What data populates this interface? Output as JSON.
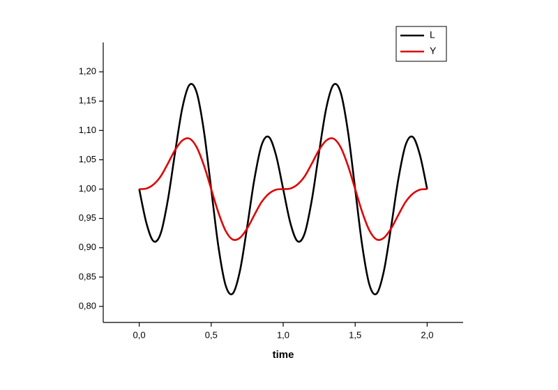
{
  "chart_data": {
    "type": "line",
    "x_label": "time",
    "x": [
      0,
      0.05,
      0.1,
      0.15,
      0.2,
      0.25,
      0.3,
      0.35,
      0.4,
      0.45,
      0.5,
      0.55,
      0.6,
      0.65,
      0.7,
      0.75,
      0.8,
      0.85,
      0.9,
      0.95,
      1,
      1.05,
      1.1,
      1.15,
      1.2,
      1.25,
      1.3,
      1.35,
      1.4,
      1.45,
      1.5,
      1.55,
      1.6,
      1.65,
      1.7,
      1.75,
      1.8,
      1.85,
      1.9,
      1.95,
      2
    ],
    "series": [
      {
        "name": "L",
        "color": "#000000",
        "values": [
          1.0,
          0.942,
          0.911,
          0.925,
          0.983,
          1.064,
          1.139,
          1.178,
          1.164,
          1.098,
          1.0,
          0.902,
          0.836,
          0.822,
          0.861,
          0.936,
          1.017,
          1.075,
          1.089,
          1.058,
          1.0,
          0.942,
          0.911,
          0.925,
          0.983,
          1.064,
          1.139,
          1.178,
          1.164,
          1.098,
          1.0,
          0.902,
          0.836,
          0.822,
          0.861,
          0.936,
          1.017,
          1.075,
          1.089,
          1.058,
          1.0
        ]
      },
      {
        "name": "Y",
        "color": "#e00000",
        "values": [
          1.0,
          1.001,
          1.008,
          1.022,
          1.044,
          1.067,
          1.083,
          1.086,
          1.071,
          1.04,
          1.0,
          0.96,
          0.929,
          0.914,
          0.917,
          0.933,
          0.956,
          0.978,
          0.992,
          0.999,
          1.0,
          1.001,
          1.008,
          1.022,
          1.044,
          1.067,
          1.083,
          1.086,
          1.071,
          1.04,
          1.0,
          0.96,
          0.929,
          0.914,
          0.917,
          0.933,
          0.956,
          0.978,
          0.992,
          0.999,
          1.0
        ]
      }
    ],
    "xlim": [
      -0.25,
      2.25
    ],
    "xticks": [
      {
        "value": 0,
        "label": "0,0"
      },
      {
        "value": 0.5,
        "label": "0,5"
      },
      {
        "value": 1,
        "label": "1,0"
      },
      {
        "value": 1.5,
        "label": "1,5"
      },
      {
        "value": 2,
        "label": "2,0"
      }
    ],
    "ylim": [
      0.775,
      1.25
    ],
    "yticks": [
      {
        "value": 0.8,
        "label": "0,80"
      },
      {
        "value": 0.85,
        "label": "0,85"
      },
      {
        "value": 0.9,
        "label": "0,90"
      },
      {
        "value": 0.95,
        "label": "0,95"
      },
      {
        "value": 1,
        "label": "1,00"
      },
      {
        "value": 1.05,
        "label": "1,05"
      },
      {
        "value": 1.1,
        "label": "1,10"
      },
      {
        "value": 1.15,
        "label": "1,15"
      },
      {
        "value": 1.2,
        "label": "1,20"
      }
    ],
    "legend": "upper right"
  }
}
